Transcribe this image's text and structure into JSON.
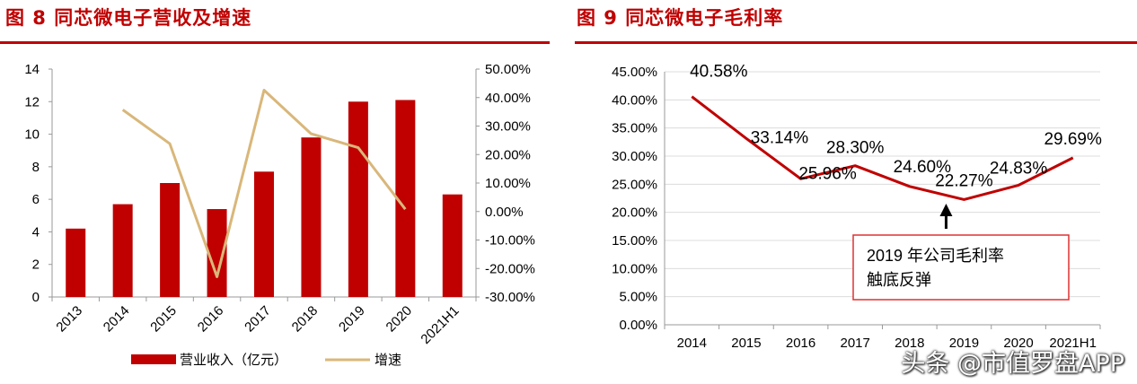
{
  "left": {
    "title": "图 8   同芯微电子营收及增速",
    "chart_data": {
      "type": "bar",
      "categories": [
        "2013",
        "2014",
        "2015",
        "2016",
        "2017",
        "2018",
        "2019",
        "2020",
        "2021H1"
      ],
      "series": [
        {
          "name": "营业收入（亿元）",
          "type": "bar",
          "axis": "left",
          "color": "#c00000",
          "values": [
            4.2,
            5.7,
            7.0,
            5.4,
            7.7,
            9.8,
            12.0,
            12.1,
            6.3
          ]
        },
        {
          "name": "增速",
          "type": "line",
          "axis": "right",
          "color": "#d9b77a",
          "values": [
            null,
            35.7,
            23.8,
            -22.9,
            42.6,
            27.3,
            22.4,
            0.8,
            null
          ]
        }
      ],
      "ylim": [
        0,
        14
      ],
      "y_ticks": [
        "0",
        "2",
        "4",
        "6",
        "8",
        "10",
        "12",
        "14"
      ],
      "y2lim": [
        -30,
        50
      ],
      "y2_ticks": [
        "-30.00%",
        "-20.00%",
        "-10.00%",
        "0.00%",
        "10.00%",
        "20.00%",
        "30.00%",
        "40.00%",
        "50.00%"
      ],
      "grid": false,
      "legend_position": "bottom"
    }
  },
  "right": {
    "title": "图 9   同芯微电子毛利率",
    "chart_data": {
      "type": "line",
      "categories": [
        "2014",
        "2015",
        "2016",
        "2017",
        "2018",
        "2019",
        "2020",
        "2021H1"
      ],
      "series": [
        {
          "color": "#c00000",
          "values": [
            40.58,
            33.14,
            25.96,
            28.3,
            24.6,
            22.27,
            24.83,
            29.69
          ],
          "labels": [
            "40.58%",
            "33.14%",
            "25.96%",
            "28.30%",
            "24.60%",
            "22.27%",
            "24.83%",
            "29.69%"
          ]
        }
      ],
      "ylim": [
        0,
        45
      ],
      "y_ticks": [
        "0.00%",
        "5.00%",
        "10.00%",
        "15.00%",
        "20.00%",
        "25.00%",
        "30.00%",
        "35.00%",
        "40.00%",
        "45.00%"
      ],
      "grid": true,
      "annotation": {
        "line1": "2019 年公司毛利率",
        "line2": "触底反弹",
        "points_to": "2019"
      }
    }
  },
  "watermark": "头条 @市值罗盘APP"
}
